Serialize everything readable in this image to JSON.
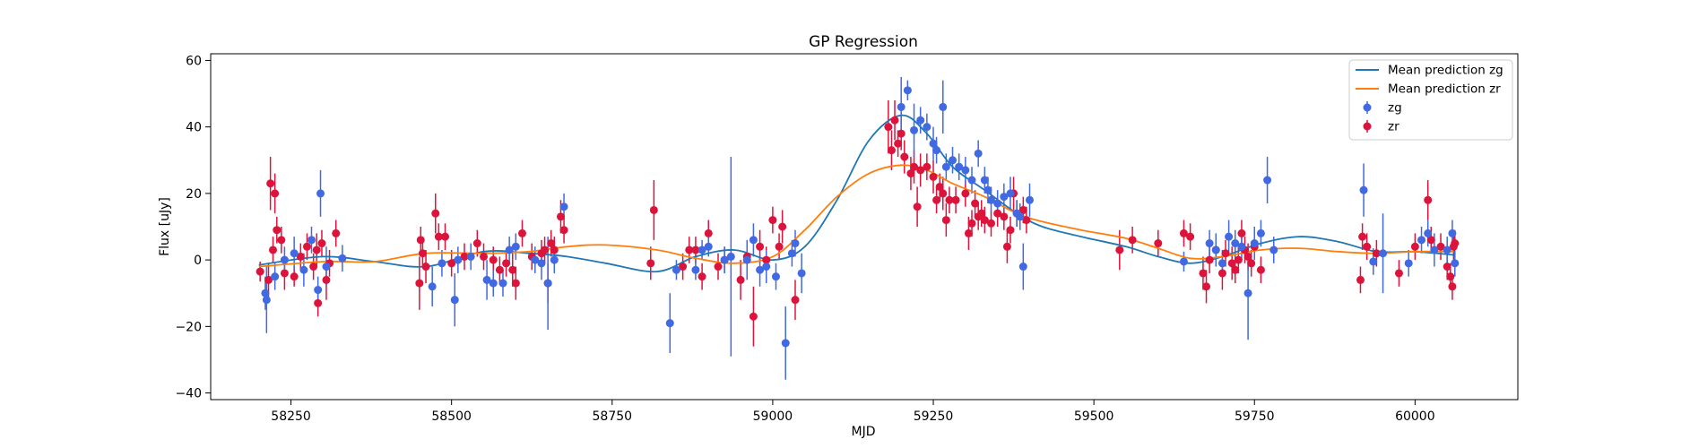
{
  "chart_data": {
    "type": "scatter",
    "title": "GP Regression",
    "xlabel": "MJD",
    "ylabel": "Flux [uJy]",
    "xlim": [
      58125,
      60160
    ],
    "ylim": [
      -42,
      62
    ],
    "xticks": [
      58250,
      58500,
      58750,
      59000,
      59250,
      59500,
      59750,
      60000
    ],
    "yticks": [
      -40,
      -20,
      0,
      20,
      40,
      60
    ],
    "grid": false,
    "legend_position": "top-right",
    "colors": {
      "zg": "#4169e1",
      "zr": "#dc143c",
      "mean_zg": "#1f77b4",
      "mean_zr": "#ff7f0e"
    },
    "mean_prediction": [
      {
        "name": "Mean prediction zg",
        "x": [
          58200,
          58300,
          58380,
          58460,
          58550,
          58620,
          58680,
          58740,
          58820,
          58880,
          58940,
          59000,
          59050,
          59100,
          59150,
          59200,
          59240,
          59280,
          59330,
          59380,
          59420,
          59480,
          59550,
          59600,
          59650,
          59700,
          59760,
          59820,
          59880,
          59940,
          60000,
          60060
        ],
        "values": [
          -1.5,
          1,
          -0.5,
          -2,
          2.5,
          2,
          1,
          -1,
          -3.5,
          1,
          3,
          0,
          4,
          18,
          36,
          43.5,
          38,
          28,
          21,
          14,
          10,
          7,
          4,
          1,
          -1,
          1,
          5,
          7,
          5.5,
          2.5,
          2.5,
          1.5
        ]
      },
      {
        "name": "Mean prediction zr",
        "x": [
          58200,
          58300,
          58380,
          58460,
          58550,
          58620,
          58680,
          58740,
          58820,
          58880,
          58940,
          59000,
          59050,
          59100,
          59150,
          59200,
          59240,
          59280,
          59330,
          59380,
          59420,
          59480,
          59550,
          59600,
          59650,
          59700,
          59760,
          59820,
          59880,
          59940,
          60000,
          60060
        ],
        "values": [
          -2,
          -0.5,
          -0.5,
          2,
          2,
          2.5,
          4,
          4.5,
          3,
          0.5,
          -1,
          1,
          9,
          19,
          26,
          28.5,
          27,
          23,
          19,
          14,
          11.5,
          9,
          6.5,
          3.5,
          0.5,
          1,
          3,
          3.5,
          2.5,
          2,
          2.5,
          2.5
        ]
      }
    ],
    "series": [
      {
        "name": "zg",
        "points": [
          [
            58210,
            -10,
            5
          ],
          [
            58212,
            -12,
            10
          ],
          [
            58225,
            -5,
            4
          ],
          [
            58240,
            0,
            4
          ],
          [
            58255,
            2,
            5
          ],
          [
            58270,
            -3,
            5
          ],
          [
            58282,
            6,
            4
          ],
          [
            58292,
            -9,
            4
          ],
          [
            58296,
            20,
            7
          ],
          [
            58305,
            -2,
            6
          ],
          [
            58330,
            0.5,
            4
          ],
          [
            58470,
            -8,
            6
          ],
          [
            58485,
            -1,
            4
          ],
          [
            58505,
            -12,
            8
          ],
          [
            58510,
            0,
            4
          ],
          [
            58530,
            1,
            4
          ],
          [
            58555,
            -6,
            6
          ],
          [
            58565,
            -7,
            4
          ],
          [
            58580,
            -7,
            4
          ],
          [
            58590,
            3,
            4
          ],
          [
            58600,
            4,
            4
          ],
          [
            58630,
            0,
            4
          ],
          [
            58640,
            -1,
            5
          ],
          [
            58650,
            -7,
            14
          ],
          [
            58660,
            0,
            4
          ],
          [
            58675,
            16,
            4
          ],
          [
            58840,
            -19,
            9
          ],
          [
            58850,
            -3,
            3
          ],
          [
            58880,
            -3,
            3
          ],
          [
            58890,
            3,
            3
          ],
          [
            58900,
            4,
            3
          ],
          [
            58925,
            0,
            4
          ],
          [
            58935,
            1,
            30
          ],
          [
            58960,
            0,
            6
          ],
          [
            58970,
            6,
            5
          ],
          [
            58980,
            -3,
            5
          ],
          [
            58990,
            -2,
            5
          ],
          [
            59005,
            -5,
            4
          ],
          [
            59020,
            -25,
            11
          ],
          [
            59030,
            2,
            4
          ],
          [
            59035,
            5,
            4
          ],
          [
            59045,
            -4,
            6
          ],
          [
            59200,
            46,
            9
          ],
          [
            59210,
            51,
            3
          ],
          [
            59220,
            39,
            8
          ],
          [
            59230,
            42,
            4
          ],
          [
            59240,
            40,
            4
          ],
          [
            59250,
            35,
            5
          ],
          [
            59255,
            33,
            4
          ],
          [
            59265,
            46,
            8
          ],
          [
            59270,
            28,
            4
          ],
          [
            59280,
            30,
            4
          ],
          [
            59290,
            28,
            4
          ],
          [
            59300,
            27,
            4
          ],
          [
            59310,
            24,
            4
          ],
          [
            59320,
            32,
            4
          ],
          [
            59330,
            24,
            4
          ],
          [
            59335,
            21,
            4
          ],
          [
            59340,
            18,
            4
          ],
          [
            59350,
            17,
            4
          ],
          [
            59360,
            19,
            4
          ],
          [
            59370,
            20,
            5
          ],
          [
            59380,
            14,
            4
          ],
          [
            59385,
            13,
            4
          ],
          [
            59390,
            -2,
            7
          ],
          [
            59400,
            18,
            5
          ],
          [
            59640,
            -0.5,
            3
          ],
          [
            59680,
            5,
            4
          ],
          [
            59690,
            3,
            5
          ],
          [
            59700,
            -1,
            4
          ],
          [
            59710,
            7,
            5
          ],
          [
            59720,
            5,
            4
          ],
          [
            59730,
            4,
            4
          ],
          [
            59740,
            -10,
            14
          ],
          [
            59750,
            5,
            5
          ],
          [
            59760,
            8,
            4
          ],
          [
            59770,
            24,
            7
          ],
          [
            59780,
            3,
            4
          ],
          [
            59920,
            21,
            8
          ],
          [
            59935,
            -0.5,
            4
          ],
          [
            59950,
            2,
            12
          ],
          [
            59990,
            -1,
            4
          ],
          [
            60010,
            6,
            4
          ],
          [
            60020,
            8,
            4
          ],
          [
            60030,
            3,
            5
          ],
          [
            60050,
            3,
            4
          ],
          [
            60058,
            8,
            4
          ],
          [
            60062,
            -1,
            4
          ]
        ]
      },
      {
        "name": "zr",
        "points": [
          [
            58202,
            -3.5,
            3
          ],
          [
            58215,
            -6,
            5
          ],
          [
            58218,
            23,
            8
          ],
          [
            58222,
            3,
            4
          ],
          [
            58225,
            20,
            6
          ],
          [
            58228,
            9,
            4
          ],
          [
            58235,
            6,
            4
          ],
          [
            58240,
            -4,
            5
          ],
          [
            58255,
            -5,
            3
          ],
          [
            58265,
            1,
            4
          ],
          [
            58275,
            4,
            4
          ],
          [
            58285,
            -2,
            4
          ],
          [
            58290,
            3,
            5
          ],
          [
            58292,
            -13,
            4
          ],
          [
            58298,
            5,
            4
          ],
          [
            58305,
            -6,
            6
          ],
          [
            58310,
            -1,
            4
          ],
          [
            58320,
            8,
            4
          ],
          [
            58450,
            -7,
            8
          ],
          [
            58452,
            6,
            4
          ],
          [
            58455,
            2,
            4
          ],
          [
            58460,
            -2,
            5
          ],
          [
            58475,
            14,
            6
          ],
          [
            58480,
            7,
            4
          ],
          [
            58490,
            7,
            4
          ],
          [
            58500,
            -1,
            4
          ],
          [
            58520,
            1,
            4
          ],
          [
            58540,
            5,
            4
          ],
          [
            58550,
            1,
            4
          ],
          [
            58565,
            0,
            4
          ],
          [
            58575,
            -3,
            4
          ],
          [
            58585,
            -1,
            4
          ],
          [
            58595,
            -3,
            5
          ],
          [
            58600,
            -7,
            5
          ],
          [
            58610,
            8,
            4
          ],
          [
            58625,
            1,
            4
          ],
          [
            58640,
            2,
            4
          ],
          [
            58645,
            3,
            4
          ],
          [
            58650,
            -7,
            6
          ],
          [
            58655,
            5,
            4
          ],
          [
            58660,
            3,
            4
          ],
          [
            58670,
            13,
            5
          ],
          [
            58675,
            9,
            4
          ],
          [
            58810,
            -1,
            5
          ],
          [
            58815,
            15,
            9
          ],
          [
            58860,
            -2,
            4
          ],
          [
            58870,
            3,
            4
          ],
          [
            58880,
            3,
            4
          ],
          [
            58890,
            -5,
            4
          ],
          [
            58900,
            8,
            4
          ],
          [
            58915,
            -2,
            4
          ],
          [
            58925,
            0,
            4
          ],
          [
            58950,
            -6,
            6
          ],
          [
            58960,
            1,
            4
          ],
          [
            58970,
            -17,
            9
          ],
          [
            58980,
            4,
            5
          ],
          [
            58990,
            0,
            4
          ],
          [
            59000,
            12,
            4
          ],
          [
            59010,
            4,
            4
          ],
          [
            59015,
            10,
            5
          ],
          [
            59035,
            -12,
            6
          ],
          [
            59180,
            40,
            8
          ],
          [
            59185,
            33,
            6
          ],
          [
            59190,
            42,
            6
          ],
          [
            59195,
            35,
            4
          ],
          [
            59200,
            38,
            5
          ],
          [
            59205,
            31,
            5
          ],
          [
            59215,
            26,
            5
          ],
          [
            59220,
            28,
            5
          ],
          [
            59225,
            16,
            6
          ],
          [
            59230,
            27,
            5
          ],
          [
            59240,
            28,
            4
          ],
          [
            59250,
            25,
            5
          ],
          [
            59255,
            18,
            4
          ],
          [
            59260,
            22,
            4
          ],
          [
            59265,
            20,
            5
          ],
          [
            59270,
            12,
            5
          ],
          [
            59275,
            18,
            4
          ],
          [
            59285,
            18,
            4
          ],
          [
            59300,
            20,
            4
          ],
          [
            59305,
            8,
            5
          ],
          [
            59310,
            11,
            4
          ],
          [
            59315,
            17,
            4
          ],
          [
            59320,
            13,
            4
          ],
          [
            59325,
            14,
            4
          ],
          [
            59330,
            12,
            4
          ],
          [
            59340,
            11,
            4
          ],
          [
            59350,
            14,
            4
          ],
          [
            59360,
            13,
            4
          ],
          [
            59365,
            4,
            5
          ],
          [
            59370,
            9,
            4
          ],
          [
            59375,
            20,
            5
          ],
          [
            59380,
            14,
            4
          ],
          [
            59390,
            15,
            4
          ],
          [
            59395,
            12,
            4
          ],
          [
            59540,
            3,
            6
          ],
          [
            59560,
            6,
            4
          ],
          [
            59600,
            5,
            4
          ],
          [
            59640,
            8,
            4
          ],
          [
            59650,
            7,
            4
          ],
          [
            59670,
            -4,
            5
          ],
          [
            59675,
            -8,
            5
          ],
          [
            59680,
            0,
            4
          ],
          [
            59690,
            3,
            4
          ],
          [
            59700,
            -4,
            5
          ],
          [
            59705,
            2,
            4
          ],
          [
            59715,
            -1,
            5
          ],
          [
            59720,
            -3,
            4
          ],
          [
            59725,
            0,
            4
          ],
          [
            59730,
            8,
            4
          ],
          [
            59735,
            3,
            4
          ],
          [
            59740,
            1,
            4
          ],
          [
            59745,
            -1,
            4
          ],
          [
            59750,
            4,
            4
          ],
          [
            59760,
            -3,
            4
          ],
          [
            59915,
            -6,
            4
          ],
          [
            59918,
            7,
            4
          ],
          [
            59925,
            4,
            4
          ],
          [
            59940,
            2,
            4
          ],
          [
            59975,
            -4,
            4
          ],
          [
            60000,
            4,
            4
          ],
          [
            60020,
            18,
            6
          ],
          [
            60025,
            6,
            4
          ],
          [
            60040,
            4,
            4
          ],
          [
            60050,
            -2,
            4
          ],
          [
            60055,
            -5,
            4
          ],
          [
            60058,
            -8,
            4
          ],
          [
            60060,
            4,
            4
          ],
          [
            60062,
            5,
            4
          ]
        ]
      }
    ],
    "legend": [
      {
        "label": "Mean prediction zg"
      },
      {
        "label": "Mean prediction zr"
      },
      {
        "label": "zg"
      },
      {
        "label": "zr"
      }
    ]
  }
}
